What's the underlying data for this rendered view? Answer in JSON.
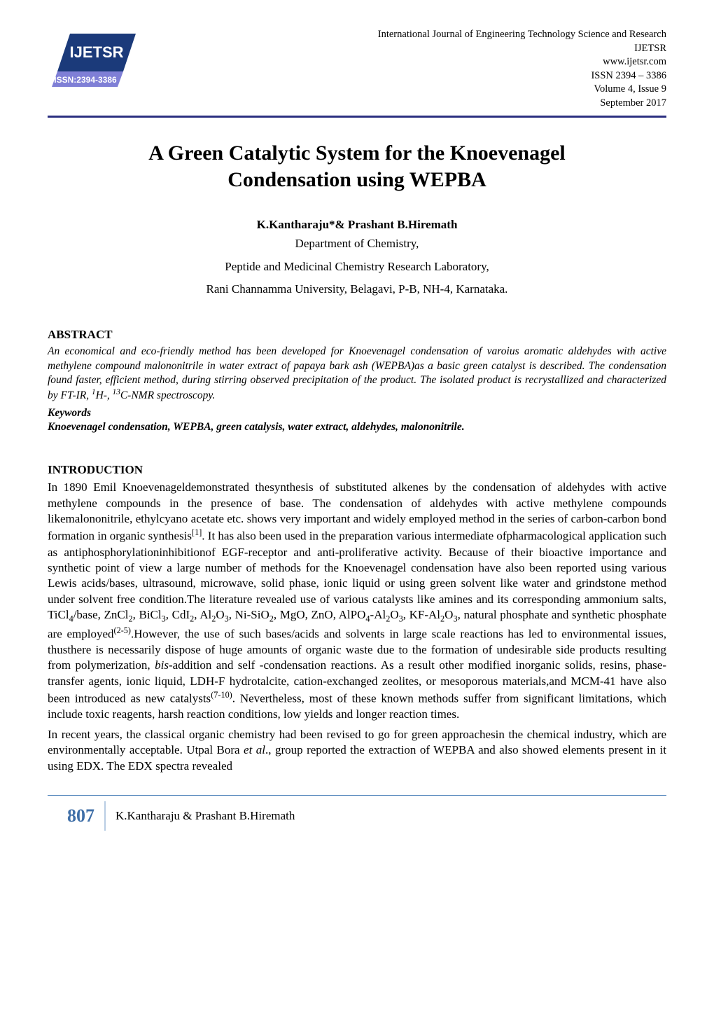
{
  "header": {
    "journal_full": "International Journal of Engineering Technology Science and Research",
    "journal_abbrev": "IJETSR",
    "website": "www.ijetsr.com",
    "issn_line": "ISSN 2394 – 3386",
    "volume_line": "Volume 4, Issue 9",
    "date_line": "September 2017",
    "logo": {
      "text_top": "IJETSR",
      "text_bottom": "ISSN:2394-3386",
      "bg_color": "#1b3a7a",
      "top_color": "#ffffff",
      "bottom_band_color": "#7f7fd6",
      "bottom_text_color": "#ffffff"
    },
    "rule_color": "#2b2f80"
  },
  "title": {
    "line1": "A Green Catalytic System for the Knoevenagel",
    "line2": "Condensation using WEPBA"
  },
  "authors": "K.Kantharaju*& Prashant B.Hiremath",
  "affiliations": [
    "Department of Chemistry,",
    "Peptide and Medicinal Chemistry Research Laboratory,",
    "Rani Channamma University, Belagavi, P-B, NH-4, Karnataka."
  ],
  "sections": {
    "abstract_heading": "ABSTRACT",
    "abstract_body_html": "An economical and eco-friendly method has been developed for Knoevenagel condensation of varoius aromatic aldehydes with active methylene compound malononitrile in water extract of papaya bark ash (WEPBA)as a basic green catalyst is described. The condensation found faster, efficient method, during stirring observed precipitation of the product. The isolated product is recrystallized and characterized by FT-IR, <sup>1</sup>H-, <sup>13</sup>C-NMR spectroscopy.",
    "keywords_label": "Keywords",
    "keywords_text": "Knoevenagel condensation, WEPBA, green catalysis, water extract, aldehydes, malononitrile.",
    "intro_heading": "INTRODUCTION",
    "intro_para1_html": "In 1890 Emil Knoevenageldemonstrated thesynthesis of substituted alkenes by the condensation of aldehydes with active methylene compounds in the presence of base. The condensation of aldehydes with active methylene compounds likemalononitrile, ethylcyano acetate etc. shows very important and widely employed method in the series of carbon-carbon bond formation in organic synthesis<sup>[1]</sup>. It has also been used in the preparation various intermediate ofpharmacological application such as antiphosphorylationinhibitionof EGF-receptor and anti-proliferative activity. Because of their bioactive importance and synthetic point of view a large number of methods for the Knoevenagel condensation have also been reported using various Lewis acids/bases, ultrasound, microwave, solid phase, ionic liquid or using green solvent like water and grindstone method under solvent free condition.The literature revealed use of various catalysts like amines and its corresponding ammonium salts, TiCl<sub>4</sub>/base, ZnCl<sub>2</sub>, BiCl<sub>3</sub>, CdI<sub>2</sub>, Al<sub>2</sub>O<sub>3</sub>, Ni-SiO<sub>2</sub>, MgO, ZnO, AlPO<sub>4</sub>-Al<sub>2</sub>O<sub>3</sub>, KF-Al<sub>2</sub>O<sub>3</sub>, natural phosphate and synthetic phosphate are employed<sup>(2-5)</sup>.However, the use of such bases/acids and solvents in large scale reactions has led to environmental issues, thusthere is necessarily dispose of huge amounts of organic waste due to the formation of undesirable side products resulting from polymerization, <i>bis</i>-addition and self -condensation reactions. As a result other modified inorganic solids, resins, phase-transfer agents, ionic liquid, LDH-F hydrotalcite, cation-exchanged zeolites, or mesoporous materials,and MCM-41 have also been introduced as new catalysts<sup>(7-10)</sup>. Nevertheless, most of these known methods suffer from significant limitations, which include toxic reagents, harsh reaction conditions, low yields and longer reaction times.",
    "intro_para2_html": "In recent years, the classical organic chemistry had been revised to go for green approachesin the chemical industry, which are environmentally acceptable. Utpal Bora <i>et al</i>., group reported the extraction of WEPBA and also showed elements present in it using EDX. The EDX spectra revealed"
  },
  "footer": {
    "rule_color": "#4a80b8",
    "page_number": "807",
    "page_number_color": "#3f6fa8",
    "authors_line": "K.Kantharaju & Prashant B.Hiremath"
  }
}
